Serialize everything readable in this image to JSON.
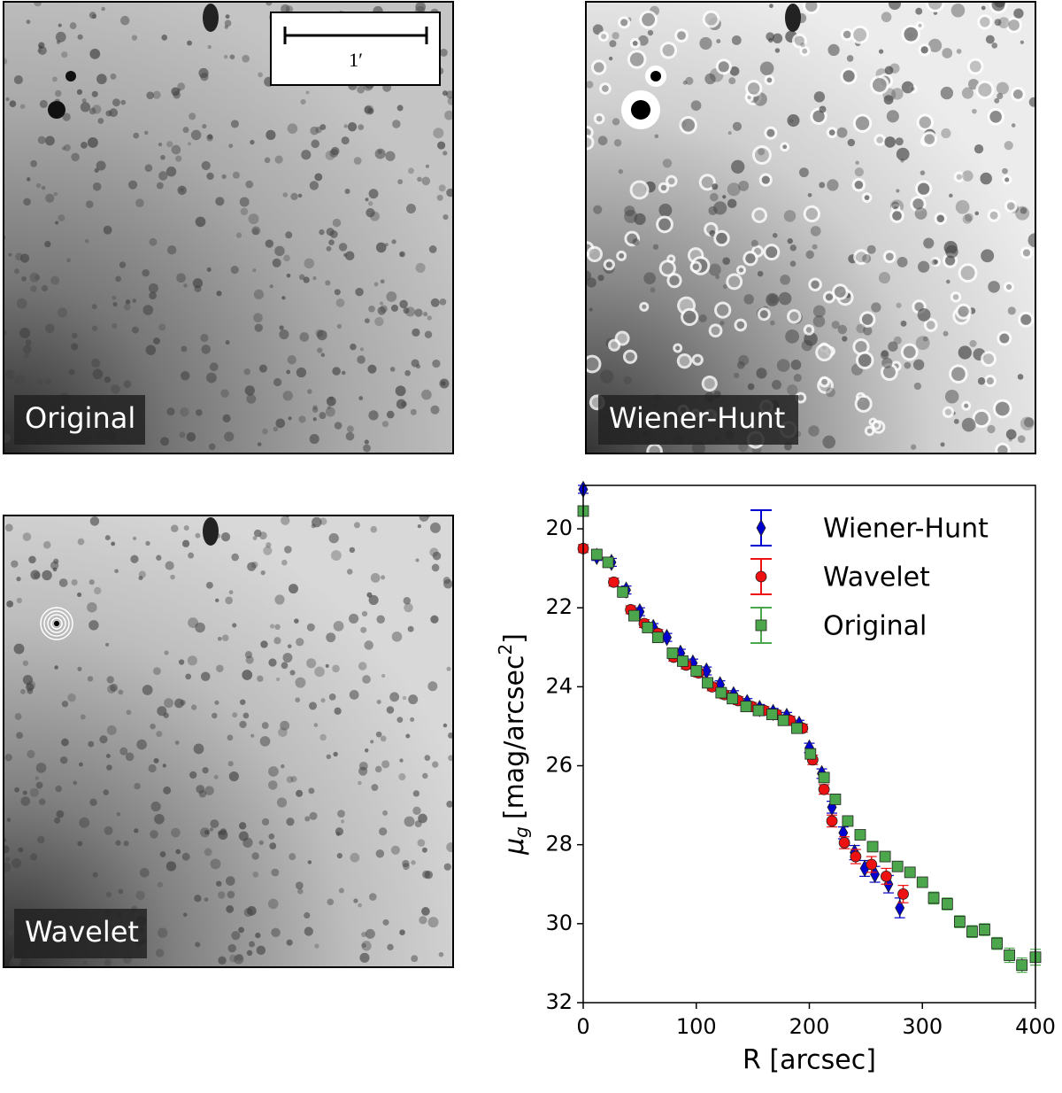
{
  "panels": [
    {
      "label": "Original"
    },
    {
      "label": "Wiener-Hunt"
    },
    {
      "label": "Wavelet"
    }
  ],
  "scale_bar": {
    "label": "1′"
  },
  "chart_data": {
    "type": "scatter",
    "x_label": "R [arcsec]",
    "y_label": [
      "μ",
      "g",
      "[mag/arcsec",
      "2",
      "]"
    ],
    "xlim": [
      0,
      400
    ],
    "xticks": [
      0,
      100,
      200,
      300,
      400
    ],
    "ylim": [
      18.9,
      32
    ],
    "yticks": [
      20,
      22,
      24,
      26,
      28,
      30,
      32
    ],
    "y_inverted": true,
    "legend": "upper-right",
    "series": [
      {
        "name": "Wiener-Hunt",
        "color": "#0000d0",
        "marker": "diamond",
        "x": [
          0,
          12,
          25,
          38,
          50,
          62,
          74,
          86,
          97,
          109,
          121,
          133,
          145,
          156,
          168,
          180,
          191,
          200,
          211,
          220,
          230,
          240,
          249,
          258,
          270,
          280
        ],
        "values": [
          19.0,
          20.7,
          20.85,
          21.55,
          22.1,
          22.5,
          22.75,
          23.15,
          23.4,
          23.6,
          23.95,
          24.2,
          24.4,
          24.55,
          24.65,
          24.75,
          24.95,
          25.55,
          26.2,
          27.05,
          27.7,
          28.2,
          28.6,
          28.75,
          29.0,
          29.6
        ],
        "yerr": [
          0.1,
          0.1,
          0.1,
          0.1,
          0.1,
          0.1,
          0.1,
          0.1,
          0.1,
          0.1,
          0.1,
          0.1,
          0.1,
          0.1,
          0.1,
          0.1,
          0.1,
          0.12,
          0.12,
          0.15,
          0.15,
          0.18,
          0.2,
          0.2,
          0.22,
          0.25
        ]
      },
      {
        "name": "Wavelet",
        "color": "#ee1111",
        "marker": "circle",
        "x": [
          0,
          27,
          42,
          54,
          66,
          80,
          91,
          102,
          114,
          125,
          137,
          149,
          160,
          171,
          183,
          194,
          203,
          213,
          220,
          231,
          241,
          255,
          268,
          283
        ],
        "values": [
          20.5,
          21.35,
          22.05,
          22.4,
          22.65,
          23.25,
          23.45,
          23.65,
          24.0,
          24.2,
          24.35,
          24.5,
          24.6,
          24.7,
          24.85,
          25.05,
          25.85,
          26.6,
          27.4,
          27.95,
          28.3,
          28.5,
          28.8,
          29.25
        ],
        "yerr": [
          0.1,
          0.1,
          0.1,
          0.1,
          0.1,
          0.1,
          0.1,
          0.1,
          0.1,
          0.1,
          0.1,
          0.1,
          0.1,
          0.1,
          0.1,
          0.1,
          0.12,
          0.12,
          0.15,
          0.15,
          0.18,
          0.2,
          0.2,
          0.22
        ]
      },
      {
        "name": "Original",
        "color": "#4ca64c",
        "marker": "square",
        "x": [
          0,
          12,
          22,
          35,
          45,
          57,
          66,
          79,
          88,
          100,
          110,
          122,
          132,
          144,
          155,
          167,
          177,
          189,
          201,
          213,
          223,
          234,
          245,
          256,
          267,
          278,
          289,
          300,
          310,
          322,
          333,
          344,
          355,
          366,
          377,
          388,
          400
        ],
        "values": [
          19.55,
          20.65,
          20.85,
          21.6,
          22.2,
          22.5,
          22.75,
          23.15,
          23.35,
          23.6,
          23.9,
          24.15,
          24.3,
          24.5,
          24.6,
          24.7,
          24.85,
          25.05,
          25.7,
          26.3,
          26.85,
          27.4,
          27.75,
          28.05,
          28.3,
          28.55,
          28.7,
          28.95,
          29.35,
          29.5,
          29.95,
          30.2,
          30.15,
          30.5,
          30.8,
          31.05,
          30.85
        ],
        "yerr": [
          0.1,
          0.1,
          0.1,
          0.1,
          0.1,
          0.1,
          0.1,
          0.1,
          0.1,
          0.1,
          0.1,
          0.1,
          0.1,
          0.1,
          0.1,
          0.1,
          0.1,
          0.1,
          0.1,
          0.1,
          0.1,
          0.1,
          0.12,
          0.12,
          0.12,
          0.12,
          0.12,
          0.12,
          0.15,
          0.15,
          0.15,
          0.15,
          0.15,
          0.15,
          0.18,
          0.18,
          0.2
        ]
      }
    ]
  }
}
